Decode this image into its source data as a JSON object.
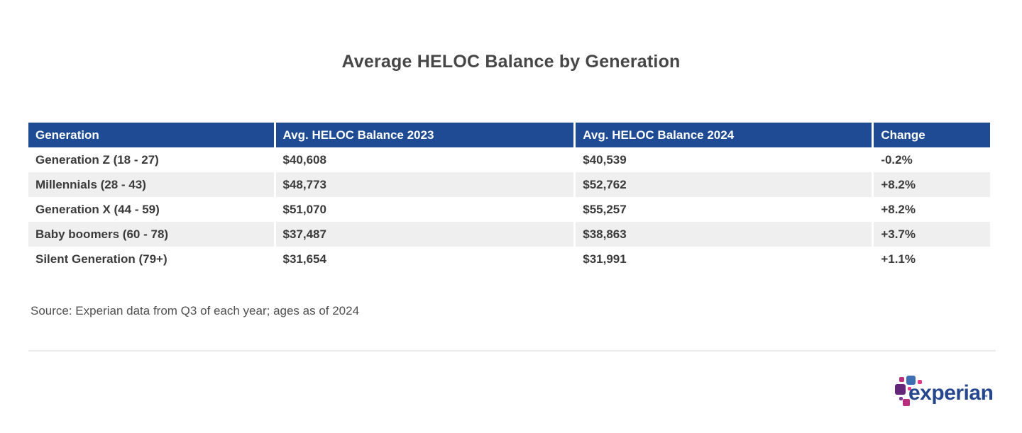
{
  "chart_data": {
    "type": "table",
    "title": "Average HELOC Balance by Generation",
    "columns": [
      "Generation",
      "Avg. HELOC Balance 2023",
      "Avg. HELOC Balance 2024",
      "Change"
    ],
    "rows": [
      [
        "Generation Z (18 - 27)",
        "$40,608",
        "$40,539",
        "-0.2%"
      ],
      [
        "Millennials (28 - 43)",
        "$48,773",
        "$52,762",
        "+8.2%"
      ],
      [
        "Generation X (44 - 59)",
        "$51,070",
        "$55,257",
        "+8.2%"
      ],
      [
        "Baby boomers (60 - 78)",
        "$37,487",
        "$38,863",
        "+3.7%"
      ],
      [
        "Silent Generation (79+)",
        "$31,654",
        "$31,991",
        "+1.1%"
      ]
    ],
    "source": "Source: Experian data from Q3 of each year; ages as of 2024",
    "layout": {
      "striped_rows": true,
      "header_bg": "#1E4B94",
      "header_text": "#FFFFFF",
      "stripe_color": "#EFEFEF",
      "body_text": "#3B3B3B",
      "legend": "none",
      "grid": "off"
    }
  },
  "footer": {
    "logo": {
      "wordmark": "experian",
      "trademark": "™",
      "colors": {
        "wordmark_blue": "#26478D",
        "square_blue": "#406EB3",
        "square_purple": "#632678",
        "square_magenta": "#BA2F7D",
        "square_pink": "#E63888"
      }
    }
  }
}
